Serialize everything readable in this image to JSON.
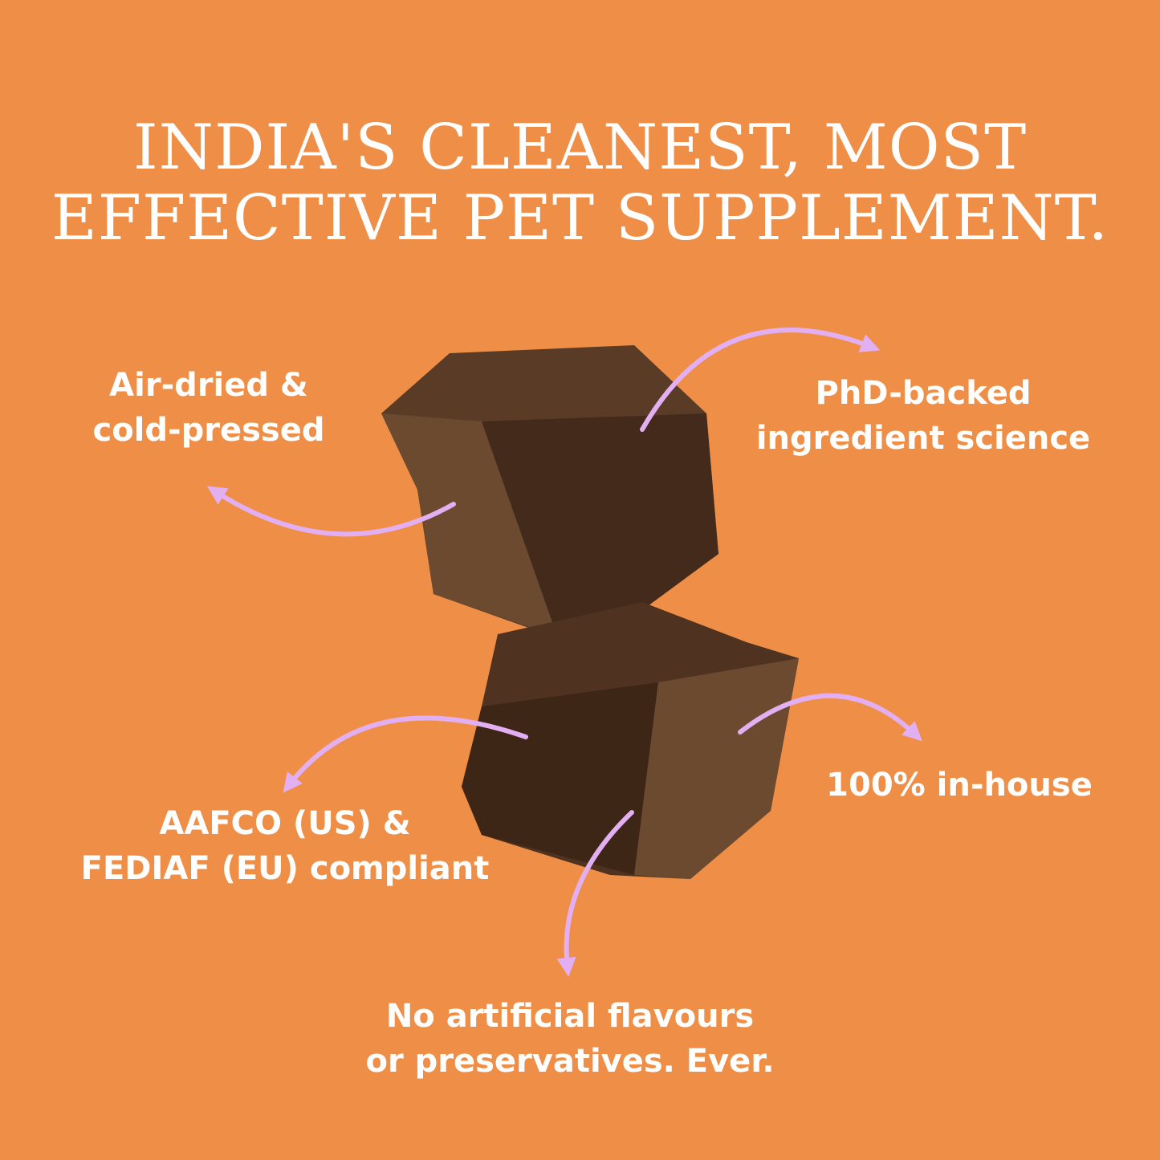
{
  "headline": {
    "line1": "INDIA'S CLEANEST, MOST",
    "line2": "EFFECTIVE PET SUPPLEMENT."
  },
  "features": {
    "air_dried": {
      "line1": "Air-dried &",
      "line2": "cold-pressed"
    },
    "phd": {
      "line1": "PhD-backed",
      "line2": "ingredient science"
    },
    "aafco": {
      "line1": "AAFCO (US) &",
      "line2": "FEDIAF (EU) compliant"
    },
    "in_house": {
      "line1": "100% in-house"
    },
    "no_artificial": {
      "line1": "No artificial flavours",
      "line2": "or preservatives. Ever."
    }
  },
  "colors": {
    "background": "#EF8F47",
    "arrow": "#E2B0F2",
    "text": "#FFFFFF",
    "product": "#4A2E1E"
  }
}
